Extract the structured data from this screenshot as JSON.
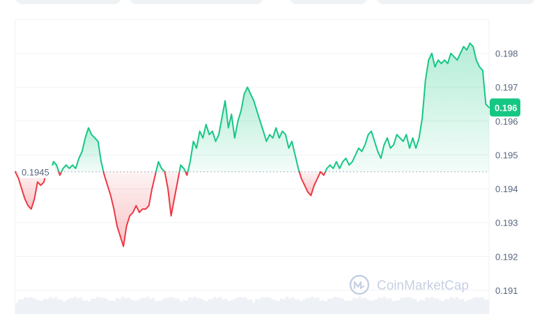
{
  "chart_data": {
    "type": "area",
    "baseline": 0.1945,
    "baseline_label": "0.1945",
    "current_price": 0.1964,
    "current_price_label": "0.196",
    "ylim": [
      0.1903,
      0.199
    ],
    "y_ticks": [
      {
        "value": 0.198,
        "label": "0.198"
      },
      {
        "value": 0.197,
        "label": "0.197"
      },
      {
        "value": 0.196,
        "label": "0.196"
      },
      {
        "value": 0.195,
        "label": "0.195"
      },
      {
        "value": 0.194,
        "label": "0.194"
      },
      {
        "value": 0.193,
        "label": "0.193"
      },
      {
        "value": 0.192,
        "label": "0.192"
      },
      {
        "value": 0.191,
        "label": "0.191"
      }
    ],
    "grid": true,
    "colors": {
      "up": "#16c784",
      "down": "#ea3943",
      "grid": "#eff2f5",
      "text": "#58667e"
    },
    "values": [
      0.1945,
      0.1943,
      0.194,
      0.1937,
      0.1935,
      0.1934,
      0.1937,
      0.1942,
      0.1941,
      0.1942,
      0.1946,
      0.1945,
      0.1948,
      0.1947,
      0.1944,
      0.1946,
      0.1947,
      0.1946,
      0.1947,
      0.1946,
      0.1949,
      0.1951,
      0.1955,
      0.1958,
      0.1956,
      0.1955,
      0.1954,
      0.1948,
      0.1944,
      0.1941,
      0.1938,
      0.1934,
      0.1929,
      0.1926,
      0.1923,
      0.1929,
      0.1932,
      0.1933,
      0.1935,
      0.1933,
      0.1934,
      0.1934,
      0.1935,
      0.194,
      0.1944,
      0.1948,
      0.1946,
      0.1945,
      0.194,
      0.1932,
      0.1937,
      0.1942,
      0.1947,
      0.1946,
      0.1944,
      0.1948,
      0.1954,
      0.1952,
      0.1957,
      0.1955,
      0.1959,
      0.1956,
      0.1957,
      0.1954,
      0.1956,
      0.1961,
      0.1966,
      0.1958,
      0.1962,
      0.1955,
      0.196,
      0.1963,
      0.1968,
      0.197,
      0.1968,
      0.1966,
      0.1963,
      0.196,
      0.1957,
      0.1954,
      0.1956,
      0.1955,
      0.1958,
      0.1955,
      0.1957,
      0.1956,
      0.1952,
      0.1954,
      0.195,
      0.1946,
      0.1943,
      0.1941,
      0.1939,
      0.1938,
      0.1941,
      0.1943,
      0.1945,
      0.1944,
      0.1946,
      0.1947,
      0.1946,
      0.1948,
      0.1946,
      0.1948,
      0.1949,
      0.1947,
      0.1948,
      0.195,
      0.1952,
      0.1951,
      0.1953,
      0.1956,
      0.1957,
      0.1954,
      0.1951,
      0.1949,
      0.1953,
      0.1955,
      0.1952,
      0.1953,
      0.1956,
      0.1955,
      0.1954,
      0.1956,
      0.1952,
      0.1955,
      0.1952,
      0.1955,
      0.1961,
      0.1972,
      0.1978,
      0.198,
      0.1976,
      0.1978,
      0.1977,
      0.1978,
      0.1977,
      0.198,
      0.1979,
      0.1978,
      0.198,
      0.1982,
      0.1981,
      0.1983,
      0.1982,
      0.1978,
      0.1976,
      0.1975,
      0.1965,
      0.1964
    ]
  },
  "watermark": {
    "text": "CoinMarketCap"
  }
}
